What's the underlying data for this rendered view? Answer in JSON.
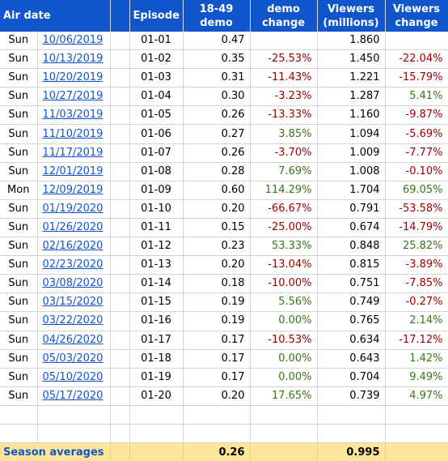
{
  "header": {
    "air_date": "Air date",
    "episode": "Episode",
    "demo_line1": "18-49",
    "demo_line2": "demo",
    "demo_change_line1": "demo",
    "demo_change_line2": "change",
    "viewers_line1": "Viewers",
    "viewers_line2": "(millions)",
    "viewers_change_line1": "Viewers",
    "viewers_change_line2": "change"
  },
  "rows": [
    {
      "day": "Sun",
      "date": "10/06/2019",
      "episode": "01-01",
      "demo": "0.47",
      "demo_change": "",
      "viewers": "1.860",
      "viewers_change": ""
    },
    {
      "day": "Sun",
      "date": "10/13/2019",
      "episode": "01-02",
      "demo": "0.35",
      "demo_change": "-25.53%",
      "viewers": "1.450",
      "viewers_change": "-22.04%"
    },
    {
      "day": "Sun",
      "date": "10/20/2019",
      "episode": "01-03",
      "demo": "0.31",
      "demo_change": "-11.43%",
      "viewers": "1.221",
      "viewers_change": "-15.79%"
    },
    {
      "day": "Sun",
      "date": "10/27/2019",
      "episode": "01-04",
      "demo": "0.30",
      "demo_change": "-3.23%",
      "viewers": "1.287",
      "viewers_change": "5.41%"
    },
    {
      "day": "Sun",
      "date": "11/03/2019",
      "episode": "01-05",
      "demo": "0.26",
      "demo_change": "-13.33%",
      "viewers": "1.160",
      "viewers_change": "-9.87%"
    },
    {
      "day": "Sun",
      "date": "11/10/2019",
      "episode": "01-06",
      "demo": "0.27",
      "demo_change": "3.85%",
      "viewers": "1.094",
      "viewers_change": "-5.69%"
    },
    {
      "day": "Sun",
      "date": "11/17/2019",
      "episode": "01-07",
      "demo": "0.26",
      "demo_change": "-3.70%",
      "viewers": "1.009",
      "viewers_change": "-7.77%"
    },
    {
      "day": "Sun",
      "date": "12/01/2019",
      "episode": "01-08",
      "demo": "0.28",
      "demo_change": "7.69%",
      "viewers": "1.008",
      "viewers_change": "-0.10%"
    },
    {
      "day": "Mon",
      "date": "12/09/2019",
      "episode": "01-09",
      "demo": "0.60",
      "demo_change": "114.29%",
      "viewers": "1.704",
      "viewers_change": "69.05%"
    },
    {
      "day": "Sun",
      "date": "01/19/2020",
      "episode": "01-10",
      "demo": "0.20",
      "demo_change": "-66.67%",
      "viewers": "0.791",
      "viewers_change": "-53.58%"
    },
    {
      "day": "Sun",
      "date": "01/26/2020",
      "episode": "01-11",
      "demo": "0.15",
      "demo_change": "-25.00%",
      "viewers": "0.674",
      "viewers_change": "-14.79%"
    },
    {
      "day": "Sun",
      "date": "02/16/2020",
      "episode": "01-12",
      "demo": "0.23",
      "demo_change": "53.33%",
      "viewers": "0.848",
      "viewers_change": "25.82%"
    },
    {
      "day": "Sun",
      "date": "02/23/2020",
      "episode": "01-13",
      "demo": "0.20",
      "demo_change": "-13.04%",
      "viewers": "0.815",
      "viewers_change": "-3.89%"
    },
    {
      "day": "Sun",
      "date": "03/08/2020",
      "episode": "01-14",
      "demo": "0.18",
      "demo_change": "-10.00%",
      "viewers": "0.751",
      "viewers_change": "-7.85%"
    },
    {
      "day": "Sun",
      "date": "03/15/2020",
      "episode": "01-15",
      "demo": "0.19",
      "demo_change": "5.56%",
      "viewers": "0.749",
      "viewers_change": "-0.27%"
    },
    {
      "day": "Sun",
      "date": "03/22/2020",
      "episode": "01-16",
      "demo": "0.19",
      "demo_change": "0.00%",
      "viewers": "0.765",
      "viewers_change": "2.14%"
    },
    {
      "day": "Sun",
      "date": "04/26/2020",
      "episode": "01-17",
      "demo": "0.17",
      "demo_change": "-10.53%",
      "viewers": "0.634",
      "viewers_change": "-17.12%"
    },
    {
      "day": "Sun",
      "date": "05/03/2020",
      "episode": "01-18",
      "demo": "0.17",
      "demo_change": "0.00%",
      "viewers": "0.643",
      "viewers_change": "1.42%"
    },
    {
      "day": "Sun",
      "date": "05/10/2020",
      "episode": "01-19",
      "demo": "0.17",
      "demo_change": "0.00%",
      "viewers": "0.704",
      "viewers_change": "9.49%"
    },
    {
      "day": "Sun",
      "date": "05/17/2020",
      "episode": "01-20",
      "demo": "0.20",
      "demo_change": "17.65%",
      "viewers": "0.739",
      "viewers_change": "4.97%"
    }
  ],
  "empty_rows": 2,
  "footer": {
    "label": "Season averages",
    "demo_avg": "0.26",
    "viewers_avg": "0.995"
  },
  "colors": {
    "header_bg": "#1155cc",
    "link": "#1155cc",
    "negative": "#990000",
    "positive": "#38761d",
    "footer_bg": "#ffe599"
  }
}
